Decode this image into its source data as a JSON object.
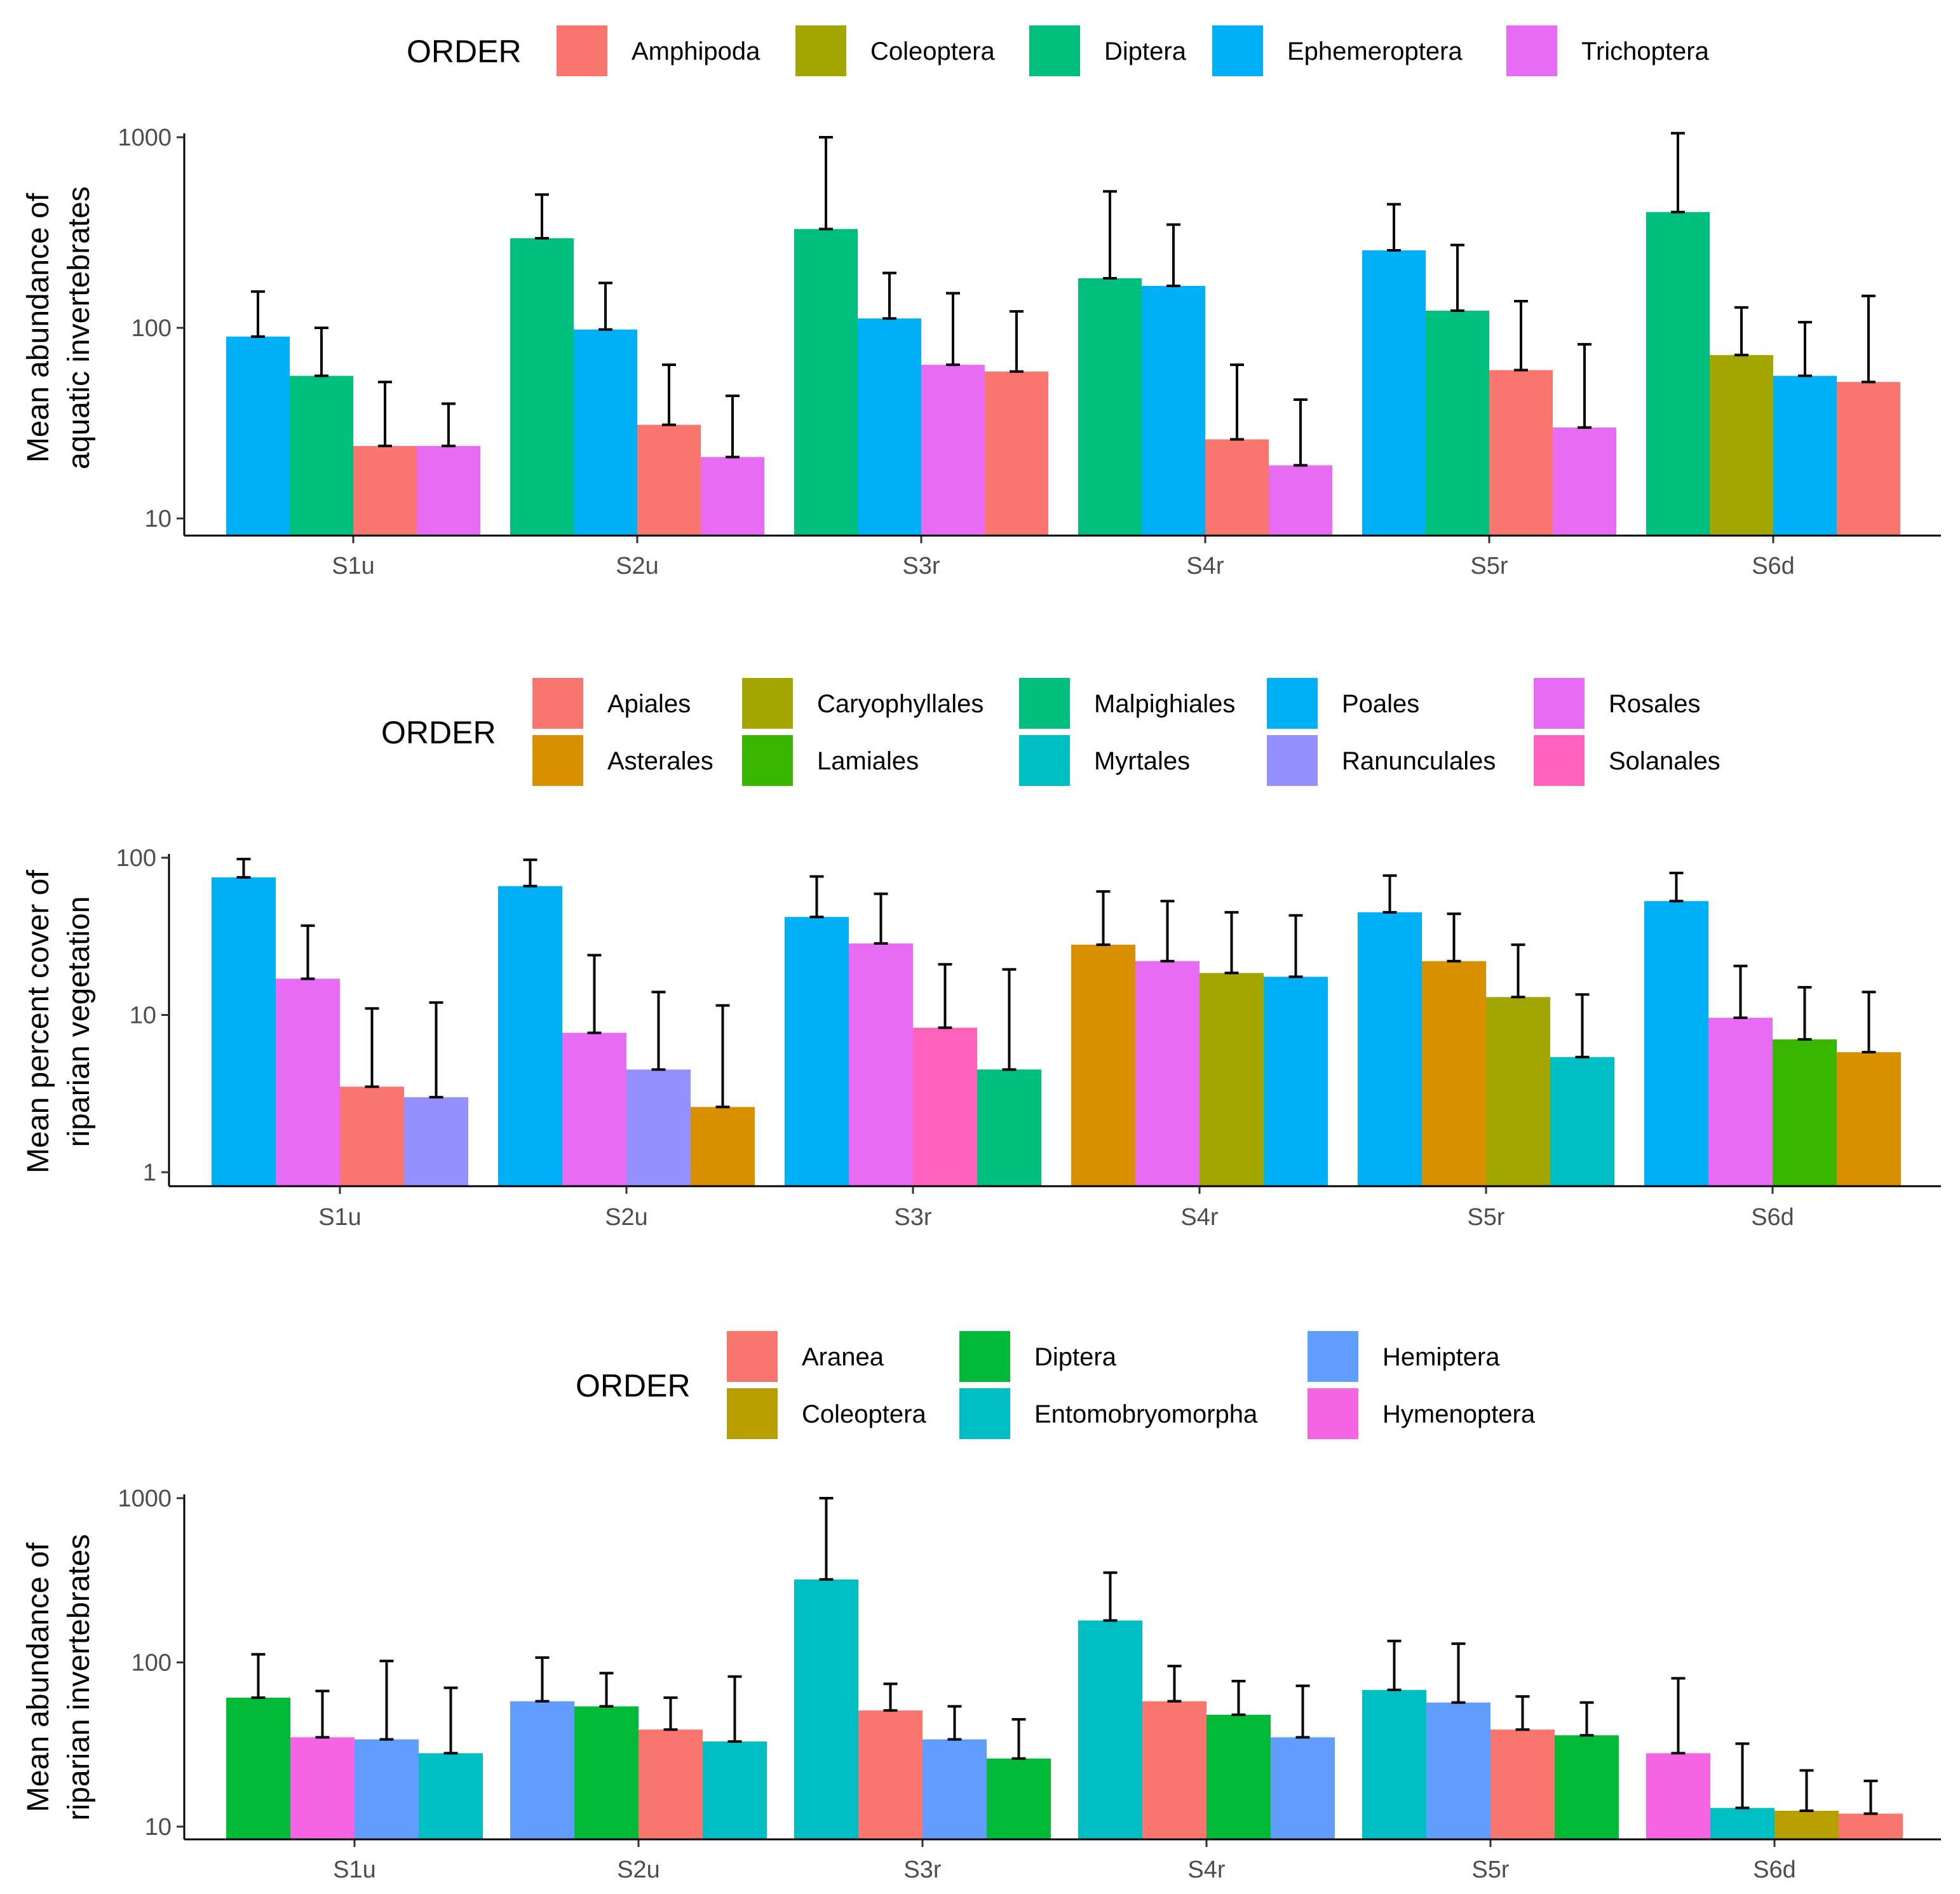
{
  "figure": {
    "colors": {
      "Amphipoda": "#F8766D",
      "Coleoptera": "#A3A500",
      "Diptera": "#00BF7D",
      "Ephemeroptera": "#00B0F6",
      "Trichoptera": "#E76BF3",
      "Apiales": "#F8766D",
      "Asterales": "#D89000",
      "Caryophyllales": "#A3A500",
      "Lamiales": "#39B600",
      "Malpighiales": "#00BF7D",
      "Myrtales": "#00BFC4",
      "Poales": "#00B0F6",
      "Ranunculales": "#9590FF",
      "Rosales": "#E76BF3",
      "Solanales": "#FF62BC",
      "Aranea": "#F8766D",
      "Diptera_r": "#00BA38",
      "Entomobryomorpha": "#00BFC4",
      "Hemiptera": "#619CFF",
      "Hymenoptera": "#F564E3",
      "Coleoptera_r": "#B79F00"
    }
  },
  "chart_data": [
    {
      "type": "bar",
      "yscale": "log",
      "ylabel_lines": [
        "Mean abundance of",
        "aquatic invertebrates"
      ],
      "ylim": [
        10,
        1000
      ],
      "yticks": [
        10,
        100,
        1000
      ],
      "ytick_labels": [
        "10",
        "100",
        "1000"
      ],
      "categories": [
        "S1u",
        "S2u",
        "S3r",
        "S4r",
        "S5r",
        "S6d"
      ],
      "legend": {
        "title": "ORDER",
        "entries": [
          {
            "label": "Amphipoda",
            "key": "Amphipoda"
          },
          {
            "label": "Coleoptera",
            "key": "Coleoptera"
          },
          {
            "label": "Diptera",
            "key": "Diptera"
          },
          {
            "label": "Ephemeroptera",
            "key": "Ephemeroptera"
          },
          {
            "label": "Trichoptera",
            "key": "Trichoptera"
          }
        ]
      },
      "groups": [
        {
          "site": "S1u",
          "bars": [
            {
              "order": "Ephemeroptera",
              "key": "Ephemeroptera",
              "value": 90,
              "err": 155
            },
            {
              "order": "Diptera",
              "key": "Diptera",
              "value": 56,
              "err": 100
            },
            {
              "order": "Amphipoda",
              "key": "Amphipoda",
              "value": 24,
              "err": 52
            },
            {
              "order": "Trichoptera",
              "key": "Trichoptera",
              "value": 24,
              "err": 40
            }
          ]
        },
        {
          "site": "S2u",
          "bars": [
            {
              "order": "Diptera",
              "key": "Diptera",
              "value": 295,
              "err": 500
            },
            {
              "order": "Ephemeroptera",
              "key": "Ephemeroptera",
              "value": 98,
              "err": 172
            },
            {
              "order": "Amphipoda",
              "key": "Amphipoda",
              "value": 31,
              "err": 64
            },
            {
              "order": "Trichoptera",
              "key": "Trichoptera",
              "value": 21,
              "err": 44
            }
          ]
        },
        {
          "site": "S3r",
          "bars": [
            {
              "order": "Diptera",
              "key": "Diptera",
              "value": 330,
              "err": 1000
            },
            {
              "order": "Ephemeroptera",
              "key": "Ephemeroptera",
              "value": 112,
              "err": 194
            },
            {
              "order": "Trichoptera",
              "key": "Trichoptera",
              "value": 64,
              "err": 152
            },
            {
              "order": "Amphipoda",
              "key": "Amphipoda",
              "value": 59,
              "err": 122
            }
          ]
        },
        {
          "site": "S4r",
          "bars": [
            {
              "order": "Diptera",
              "key": "Diptera",
              "value": 182,
              "err": 520
            },
            {
              "order": "Ephemeroptera",
              "key": "Ephemeroptera",
              "value": 166,
              "err": 348
            },
            {
              "order": "Amphipoda",
              "key": "Amphipoda",
              "value": 26,
              "err": 64
            },
            {
              "order": "Trichoptera",
              "key": "Trichoptera",
              "value": 19,
              "err": 42
            }
          ]
        },
        {
          "site": "S5r",
          "bars": [
            {
              "order": "Ephemeroptera",
              "key": "Ephemeroptera",
              "value": 255,
              "err": 445
            },
            {
              "order": "Diptera",
              "key": "Diptera",
              "value": 123,
              "err": 272
            },
            {
              "order": "Amphipoda",
              "key": "Amphipoda",
              "value": 60,
              "err": 138
            },
            {
              "order": "Trichoptera",
              "key": "Trichoptera",
              "value": 30,
              "err": 82
            }
          ]
        },
        {
          "site": "S6d",
          "bars": [
            {
              "order": "Diptera",
              "key": "Diptera",
              "value": 405,
              "err": 1050
            },
            {
              "order": "Coleoptera",
              "key": "Coleoptera",
              "value": 72,
              "err": 128
            },
            {
              "order": "Ephemeroptera",
              "key": "Ephemeroptera",
              "value": 56,
              "err": 107
            },
            {
              "order": "Amphipoda",
              "key": "Amphipoda",
              "value": 52,
              "err": 147
            }
          ]
        }
      ]
    },
    {
      "type": "bar",
      "yscale": "log",
      "ylabel_lines": [
        "Mean percent cover of",
        "riparian vegetation"
      ],
      "ylim": [
        1,
        100
      ],
      "yticks": [
        1,
        10,
        100
      ],
      "ytick_labels": [
        "1",
        "10",
        "100"
      ],
      "categories": [
        "S1u",
        "S2u",
        "S3r",
        "S4r",
        "S5r",
        "S6d"
      ],
      "legend": {
        "title": "ORDER",
        "entries": [
          {
            "label": "Apiales",
            "key": "Apiales"
          },
          {
            "label": "Asterales",
            "key": "Asterales"
          },
          {
            "label": "Caryophyllales",
            "key": "Caryophyllales"
          },
          {
            "label": "Lamiales",
            "key": "Lamiales"
          },
          {
            "label": "Malpighiales",
            "key": "Malpighiales"
          },
          {
            "label": "Myrtales",
            "key": "Myrtales"
          },
          {
            "label": "Poales",
            "key": "Poales"
          },
          {
            "label": "Ranunculales",
            "key": "Ranunculales"
          },
          {
            "label": "Rosales",
            "key": "Rosales"
          },
          {
            "label": "Solanales",
            "key": "Solanales"
          }
        ]
      },
      "groups": [
        {
          "site": "S1u",
          "bars": [
            {
              "order": "Poales",
              "key": "Poales",
              "value": 75,
              "err": 98
            },
            {
              "order": "Rosales",
              "key": "Rosales",
              "value": 17,
              "err": 37
            },
            {
              "order": "Apiales",
              "key": "Apiales",
              "value": 3.5,
              "err": 11
            },
            {
              "order": "Ranunculales",
              "key": "Ranunculales",
              "value": 3.0,
              "err": 12
            }
          ]
        },
        {
          "site": "S2u",
          "bars": [
            {
              "order": "Poales",
              "key": "Poales",
              "value": 66,
              "err": 97
            },
            {
              "order": "Rosales",
              "key": "Rosales",
              "value": 7.7,
              "err": 24
            },
            {
              "order": "Ranunculales",
              "key": "Ranunculales",
              "value": 4.5,
              "err": 14
            },
            {
              "order": "Asterales",
              "key": "Asterales",
              "value": 2.6,
              "err": 11.5
            }
          ]
        },
        {
          "site": "S3r",
          "bars": [
            {
              "order": "Poales",
              "key": "Poales",
              "value": 42,
              "err": 76
            },
            {
              "order": "Rosales",
              "key": "Rosales",
              "value": 28.5,
              "err": 59
            },
            {
              "order": "Solanales",
              "key": "Solanales",
              "value": 8.3,
              "err": 21
            },
            {
              "order": "Malpighiales",
              "key": "Malpighiales",
              "value": 4.5,
              "err": 19.5
            }
          ]
        },
        {
          "site": "S4r",
          "bars": [
            {
              "order": "Asterales",
              "key": "Asterales",
              "value": 28,
              "err": 61
            },
            {
              "order": "Rosales",
              "key": "Rosales",
              "value": 22,
              "err": 53
            },
            {
              "order": "Caryophyllales",
              "key": "Caryophyllales",
              "value": 18.5,
              "err": 45
            },
            {
              "order": "Poales",
              "key": "Poales",
              "value": 17.5,
              "err": 43
            }
          ]
        },
        {
          "site": "S5r",
          "bars": [
            {
              "order": "Poales",
              "key": "Poales",
              "value": 45,
              "err": 77
            },
            {
              "order": "Asterales",
              "key": "Asterales",
              "value": 22,
              "err": 44
            },
            {
              "order": "Caryophyllales",
              "key": "Caryophyllales",
              "value": 13,
              "err": 28
            },
            {
              "order": "Myrtales",
              "key": "Myrtales",
              "value": 5.4,
              "err": 13.5
            }
          ]
        },
        {
          "site": "S6d",
          "bars": [
            {
              "order": "Poales",
              "key": "Poales",
              "value": 53,
              "err": 80
            },
            {
              "order": "Rosales",
              "key": "Rosales",
              "value": 9.6,
              "err": 20.5
            },
            {
              "order": "Lamiales",
              "key": "Lamiales",
              "value": 7.0,
              "err": 15
            },
            {
              "order": "Asterales",
              "key": "Asterales",
              "value": 5.8,
              "err": 14
            }
          ]
        }
      ]
    },
    {
      "type": "bar",
      "yscale": "log",
      "ylabel_lines": [
        "Mean abundance of",
        "riparian invertebrates"
      ],
      "ylim": [
        10,
        1000
      ],
      "yticks": [
        10,
        100,
        1000
      ],
      "ytick_labels": [
        "10",
        "100",
        "1000"
      ],
      "categories": [
        "S1u",
        "S2u",
        "S3r",
        "S4r",
        "S5r",
        "S6d"
      ],
      "legend": {
        "title": "ORDER",
        "entries": [
          {
            "label": "Aranea",
            "key": "Aranea"
          },
          {
            "label": "Coleoptera",
            "key": "Coleoptera_r"
          },
          {
            "label": "Diptera",
            "key": "Diptera_r"
          },
          {
            "label": "Entomobryomorpha",
            "key": "Entomobryomorpha"
          },
          {
            "label": "Hemiptera",
            "key": "Hemiptera"
          },
          {
            "label": "Hymenoptera",
            "key": "Hymenoptera"
          }
        ]
      },
      "groups": [
        {
          "site": "S1u",
          "bars": [
            {
              "order": "Diptera",
              "key": "Diptera_r",
              "value": 61,
              "err": 112
            },
            {
              "order": "Hymenoptera",
              "key": "Hymenoptera",
              "value": 35,
              "err": 67
            },
            {
              "order": "Hemiptera",
              "key": "Hemiptera",
              "value": 34,
              "err": 102
            },
            {
              "order": "Entomobryomorpha",
              "key": "Entomobryomorpha",
              "value": 28,
              "err": 70
            }
          ]
        },
        {
          "site": "S2u",
          "bars": [
            {
              "order": "Hemiptera",
              "key": "Hemiptera",
              "value": 58,
              "err": 107
            },
            {
              "order": "Diptera",
              "key": "Diptera_r",
              "value": 54,
              "err": 86
            },
            {
              "order": "Aranea",
              "key": "Aranea",
              "value": 39,
              "err": 61
            },
            {
              "order": "Entomobryomorpha",
              "key": "Entomobryomorpha",
              "value": 33,
              "err": 82
            }
          ]
        },
        {
          "site": "S3r",
          "bars": [
            {
              "order": "Entomobryomorpha",
              "key": "Entomobryomorpha",
              "value": 320,
              "err": 1000
            },
            {
              "order": "Aranea",
              "key": "Aranea",
              "value": 51,
              "err": 74
            },
            {
              "order": "Hemiptera",
              "key": "Hemiptera",
              "value": 34,
              "err": 54
            },
            {
              "order": "Diptera",
              "key": "Diptera_r",
              "value": 26,
              "err": 45
            }
          ]
        },
        {
          "site": "S4r",
          "bars": [
            {
              "order": "Entomobryomorpha",
              "key": "Entomobryomorpha",
              "value": 180,
              "err": 352
            },
            {
              "order": "Aranea",
              "key": "Aranea",
              "value": 58,
              "err": 95
            },
            {
              "order": "Diptera",
              "key": "Diptera_r",
              "value": 48,
              "err": 77
            },
            {
              "order": "Hemiptera",
              "key": "Hemiptera",
              "value": 35,
              "err": 72
            }
          ]
        },
        {
          "site": "S5r",
          "bars": [
            {
              "order": "Entomobryomorpha",
              "key": "Entomobryomorpha",
              "value": 68,
              "err": 135
            },
            {
              "order": "Hemiptera",
              "key": "Hemiptera",
              "value": 57,
              "err": 130
            },
            {
              "order": "Aranea",
              "key": "Aranea",
              "value": 39,
              "err": 62
            },
            {
              "order": "Diptera",
              "key": "Diptera_r",
              "value": 36,
              "err": 57
            }
          ]
        },
        {
          "site": "S6d",
          "bars": [
            {
              "order": "Hymenoptera",
              "key": "Hymenoptera",
              "value": 28,
              "err": 80
            },
            {
              "order": "Entomobryomorpha",
              "key": "Entomobryomorpha",
              "value": 13,
              "err": 32
            },
            {
              "order": "Coleoptera",
              "key": "Coleoptera_r",
              "value": 12.5,
              "err": 22
            },
            {
              "order": "Aranea",
              "key": "Aranea",
              "value": 12,
              "err": 19
            }
          ]
        }
      ]
    }
  ]
}
